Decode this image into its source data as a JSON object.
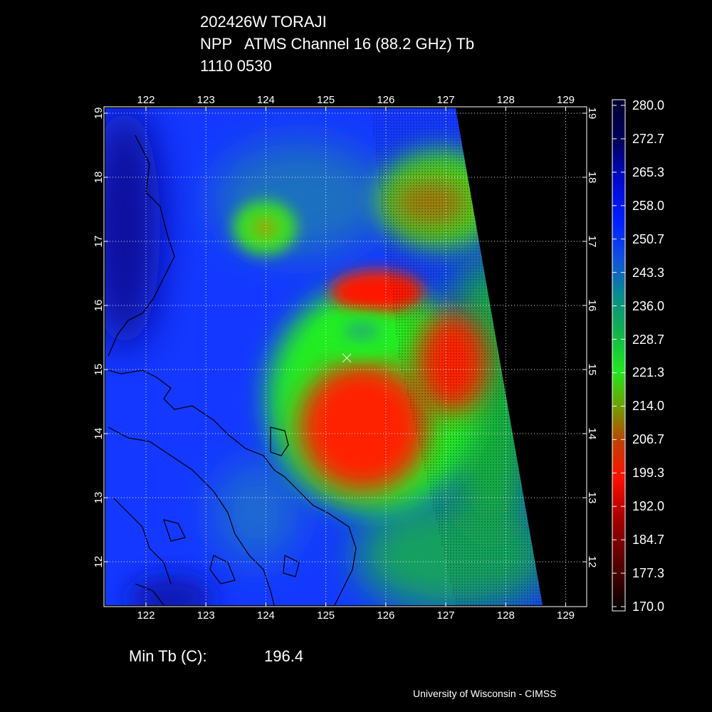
{
  "header": {
    "line1": "202426W TORAJI",
    "line2": "NPP   ATMS Channel 16 (88.2 GHz) Tb",
    "line3": "1110 0530"
  },
  "map": {
    "lon_ticks": [
      "122",
      "123",
      "124",
      "125",
      "126",
      "127",
      "128",
      "129"
    ],
    "lat_ticks": [
      "19",
      "18",
      "17",
      "16",
      "15",
      "14",
      "13",
      "12"
    ],
    "lon_range": [
      121.3,
      129.35
    ],
    "lat_range": [
      11.3,
      19.1
    ],
    "center_marker": {
      "lon": 125.35,
      "lat": 15.18
    }
  },
  "colorbar": {
    "labels": [
      "280.0",
      "272.7",
      "265.3",
      "258.0",
      "250.7",
      "243.3",
      "236.0",
      "228.7",
      "221.3",
      "214.0",
      "206.7",
      "199.3",
      "192.0",
      "184.7",
      "177.3",
      "170.0"
    ],
    "range": [
      170.0,
      280.0
    ]
  },
  "footer": {
    "min_label": "Min Tb (C):",
    "min_value": "196.4",
    "credit": "University of Wisconsin - CIMSS"
  },
  "colors": {
    "background": "#000000",
    "ocean": "#1a3cff",
    "convection": "#ff1a00",
    "ring": "#22ee22"
  }
}
